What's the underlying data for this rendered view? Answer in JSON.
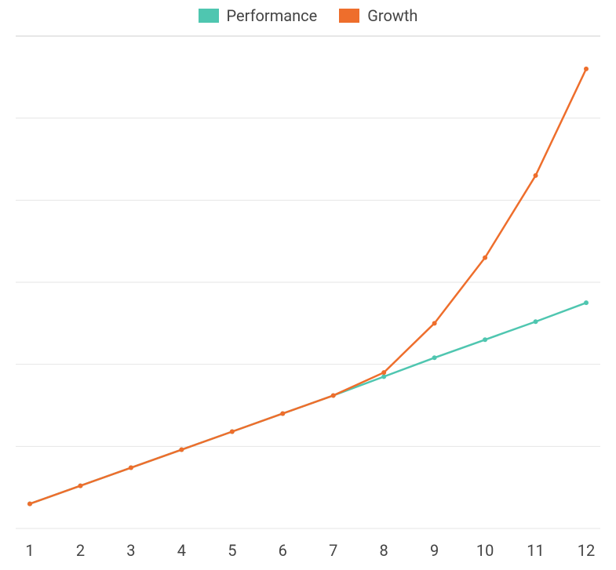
{
  "chart": {
    "type": "line",
    "background_color": "#ffffff",
    "grid_color": "#e6e6e6",
    "grid_top_color": "#cfcfcf",
    "axis_label_color": "#444444",
    "label_fontsize": 20,
    "legend_fontsize": 20,
    "line_width": 2.5,
    "point_radius": 3,
    "x_categories": [
      "1",
      "2",
      "3",
      "4",
      "5",
      "6",
      "7",
      "8",
      "9",
      "10",
      "11",
      "12"
    ],
    "ylim": [
      0,
      6
    ],
    "y_gridlines": [
      0,
      1,
      2,
      3,
      4,
      5,
      6
    ],
    "series": [
      {
        "name": "Performance",
        "color": "#4fc6b0",
        "values": [
          0.3,
          0.52,
          0.74,
          0.96,
          1.18,
          1.4,
          1.62,
          1.85,
          2.08,
          2.3,
          2.52,
          2.75
        ]
      },
      {
        "name": "Growth",
        "color": "#ee6e2c",
        "values": [
          0.3,
          0.52,
          0.74,
          0.96,
          1.18,
          1.4,
          1.62,
          1.9,
          2.5,
          3.3,
          4.3,
          5.6
        ]
      }
    ]
  }
}
